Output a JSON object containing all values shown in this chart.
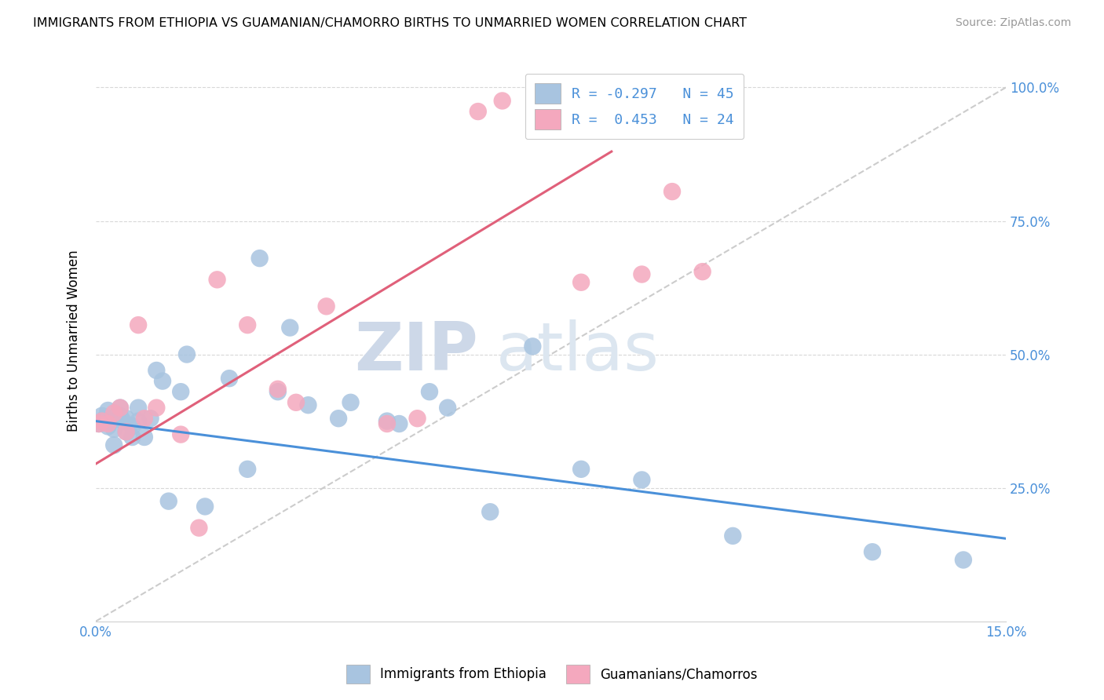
{
  "title": "IMMIGRANTS FROM ETHIOPIA VS GUAMANIAN/CHAMORRO BIRTHS TO UNMARRIED WOMEN CORRELATION CHART",
  "source": "Source: ZipAtlas.com",
  "ylabel": "Births to Unmarried Women",
  "xmin": 0.0,
  "xmax": 0.15,
  "ymin": 0.0,
  "ymax": 1.05,
  "legend_r1": "R = -0.297",
  "legend_n1": "N = 45",
  "legend_r2": "R =  0.453",
  "legend_n2": "N = 24",
  "blue_color": "#a8c4e0",
  "pink_color": "#f4a8be",
  "blue_line_color": "#4a90d9",
  "pink_line_color": "#e0607a",
  "diagonal_color": "#cccccc",
  "watermark_zip": "ZIP",
  "watermark_atlas": "atlas",
  "blue_scatter_x": [
    0.0005,
    0.001,
    0.0015,
    0.002,
    0.002,
    0.0025,
    0.003,
    0.003,
    0.003,
    0.004,
    0.004,
    0.0045,
    0.005,
    0.005,
    0.006,
    0.006,
    0.007,
    0.007,
    0.008,
    0.009,
    0.01,
    0.011,
    0.012,
    0.014,
    0.015,
    0.018,
    0.022,
    0.025,
    0.027,
    0.03,
    0.032,
    0.035,
    0.04,
    0.042,
    0.048,
    0.05,
    0.055,
    0.058,
    0.065,
    0.072,
    0.08,
    0.09,
    0.105,
    0.128,
    0.143
  ],
  "blue_scatter_y": [
    0.37,
    0.385,
    0.38,
    0.395,
    0.365,
    0.375,
    0.38,
    0.36,
    0.33,
    0.4,
    0.385,
    0.375,
    0.355,
    0.38,
    0.345,
    0.365,
    0.4,
    0.375,
    0.345,
    0.38,
    0.47,
    0.45,
    0.225,
    0.43,
    0.5,
    0.215,
    0.455,
    0.285,
    0.68,
    0.43,
    0.55,
    0.405,
    0.38,
    0.41,
    0.375,
    0.37,
    0.43,
    0.4,
    0.205,
    0.515,
    0.285,
    0.265,
    0.16,
    0.13,
    0.115
  ],
  "pink_scatter_x": [
    0.0005,
    0.001,
    0.002,
    0.003,
    0.004,
    0.005,
    0.007,
    0.008,
    0.01,
    0.014,
    0.017,
    0.02,
    0.025,
    0.03,
    0.033,
    0.038,
    0.048,
    0.053,
    0.063,
    0.067,
    0.08,
    0.09,
    0.095,
    0.1
  ],
  "pink_scatter_y": [
    0.37,
    0.375,
    0.37,
    0.39,
    0.4,
    0.355,
    0.555,
    0.38,
    0.4,
    0.35,
    0.175,
    0.64,
    0.555,
    0.435,
    0.41,
    0.59,
    0.37,
    0.38,
    0.955,
    0.975,
    0.635,
    0.65,
    0.805,
    0.655
  ],
  "blue_line_x": [
    0.0,
    0.15
  ],
  "blue_line_y": [
    0.375,
    0.155
  ],
  "pink_line_x": [
    0.0,
    0.085
  ],
  "pink_line_y": [
    0.295,
    0.88
  ],
  "diag_line_x": [
    0.0,
    0.15
  ],
  "diag_line_y": [
    0.0,
    1.0
  ]
}
